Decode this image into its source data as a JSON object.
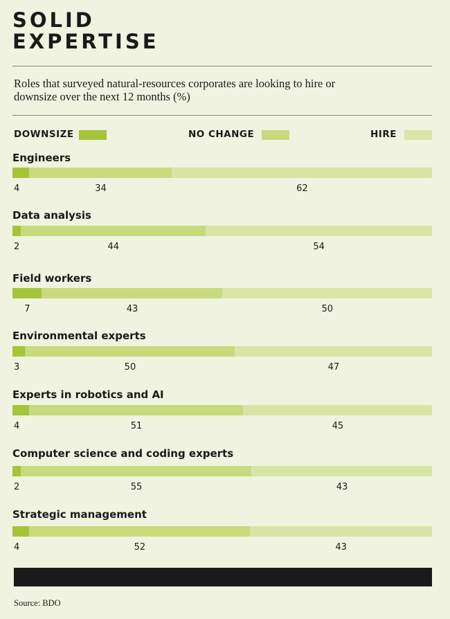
{
  "header": {
    "title": "SOLID\nEXPERTISE",
    "subtitle": "Roles that surveyed natural-resources corporates are looking to hire or downsize over the next 12 months (%)"
  },
  "legend": [
    {
      "label": "DOWNSIZE",
      "color": "#a5c43a"
    },
    {
      "label": "NO CHANGE",
      "color": "#c8da7c"
    },
    {
      "label": "HIRE",
      "color": "#d9e5a7"
    }
  ],
  "chart_data": {
    "type": "bar",
    "stacked": true,
    "orientation": "horizontal",
    "title": "SOLID EXPERTISE",
    "subtitle": "Roles that surveyed natural-resources corporates are looking to hire or downsize over the next 12 months (%)",
    "categories": [
      "Engineers",
      "Data analysis",
      "Field workers",
      "Environmental experts",
      "Experts in robotics and AI",
      "Computer science and coding experts",
      "Strategic management"
    ],
    "series": [
      {
        "name": "DOWNSIZE",
        "values": [
          4,
          2,
          7,
          3,
          4,
          2,
          4
        ]
      },
      {
        "name": "NO CHANGE",
        "values": [
          34,
          44,
          43,
          50,
          51,
          55,
          52
        ]
      },
      {
        "name": "HIRE",
        "values": [
          62,
          54,
          50,
          47,
          45,
          43,
          43
        ]
      }
    ],
    "xlim": [
      0,
      100
    ],
    "grid": false,
    "legend_position": "top"
  },
  "footer": {
    "source": "Source: BDO"
  }
}
